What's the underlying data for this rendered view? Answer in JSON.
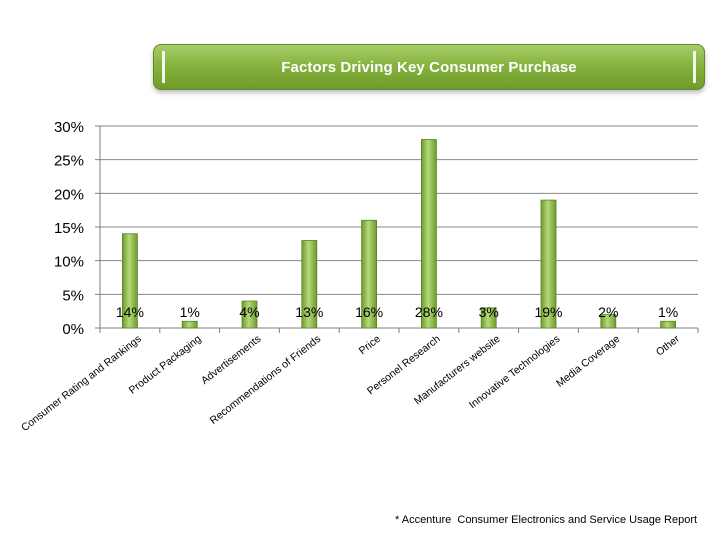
{
  "chart_data": {
    "type": "bar",
    "title": "Factors Driving Key Consumer Purchase",
    "categories": [
      "Consumer Rating and Rankings",
      "Product Packaging",
      "Advertisements",
      "Recommendations of Friends",
      "Price",
      "Personel Research",
      "Manufacturers website",
      "Innovative Technologies",
      "Media Coverage",
      "Other"
    ],
    "values": [
      14,
      1,
      4,
      13,
      16,
      28,
      3,
      19,
      2,
      1
    ],
    "data_labels": [
      "14%",
      "1%",
      "4%",
      "13%",
      "16%",
      "28%",
      "3%",
      "19%",
      "2%",
      "1%"
    ],
    "ylim": [
      0,
      30
    ],
    "yticks": [
      0,
      5,
      10,
      15,
      20,
      25,
      30
    ],
    "ytick_labels": [
      "0%",
      "5%",
      "10%",
      "15%",
      "20%",
      "25%",
      "30%"
    ],
    "grid": true,
    "legend": "none",
    "xlabel": "",
    "ylabel": "",
    "colors": {
      "bar_light": "#b5d97a",
      "bar_dark": "#6e9a2c",
      "bar_edge": "#5b8424",
      "grid": "#878787",
      "axis": "#7f7f7f"
    }
  },
  "source_note": "* Accenture  Consumer Electronics and Service Usage Report"
}
